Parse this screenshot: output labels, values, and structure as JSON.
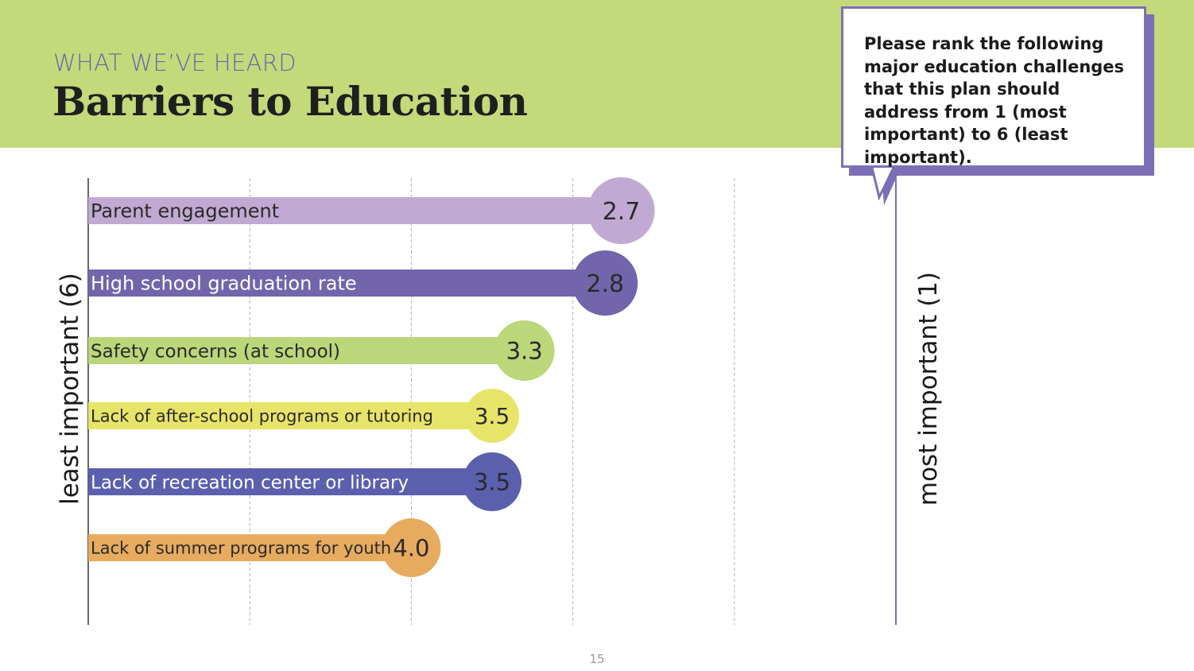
{
  "header": {
    "kicker": "WHAT WE’VE HEARD",
    "title": "Barriers to Education"
  },
  "callout": {
    "text": "Please rank the following major education challenges that this plan should address from 1 (most important) to 6 (least important)."
  },
  "page_number": "15",
  "colors": {
    "header_band": "#c4da7a",
    "accent_purple": "#7d6fb5"
  },
  "chart_data": {
    "type": "bar",
    "orientation": "horizontal",
    "title": "Barriers to Education",
    "xlabel_left": "least important (6)",
    "xlabel_right": "most important (1)",
    "xlim": [
      6,
      1
    ],
    "grid": true,
    "grid_values": [
      5,
      4,
      3,
      2
    ],
    "categories": [
      "Parent engagement",
      "High school graduation rate",
      "Safety concerns (at school)",
      "Lack of after-school programs or tutoring",
      "Lack of recreation center or library",
      "Lack of summer programs for youth"
    ],
    "values": [
      2.7,
      2.8,
      3.3,
      3.5,
      3.5,
      4.0
    ],
    "value_labels": [
      "2.7",
      "2.8",
      "3.3",
      "3.5",
      "3.5",
      "4.0"
    ],
    "colors": [
      "#c0aad3",
      "#7265ab",
      "#bcd67a",
      "#e7e46a",
      "#5a60ad",
      "#e7ab5f"
    ],
    "label_colors": [
      "#2a2a2a",
      "#ffffff",
      "#2a2a2a",
      "#2a2a2a",
      "#ffffff",
      "#2a2a2a"
    ],
    "value_colors": [
      "#2a2a2a",
      "#2a2a2a",
      "#2a2a2a",
      "#2a2a2a",
      "#2a2a2a",
      "#2a2a2a"
    ]
  }
}
